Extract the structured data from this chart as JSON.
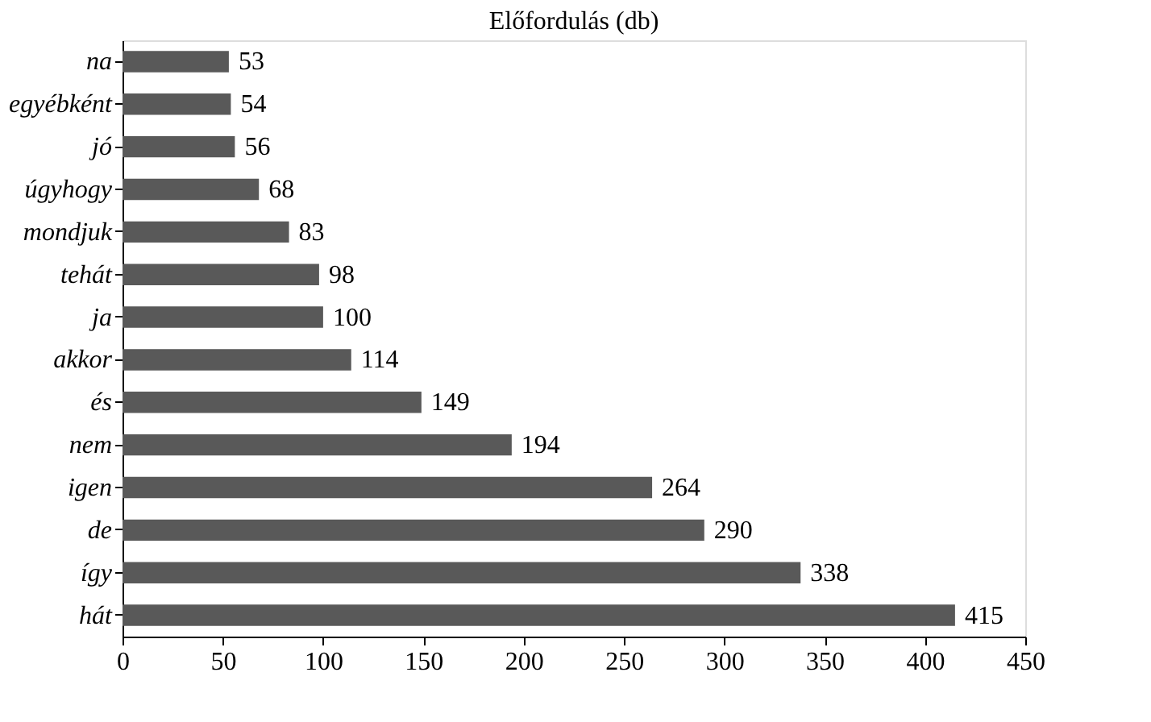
{
  "chart_data": {
    "type": "bar",
    "orientation": "horizontal",
    "title": "Előfordulás (db)",
    "categories": [
      "na",
      "egyébként",
      "jó",
      "úgyhogy",
      "mondjuk",
      "tehát",
      "ja",
      "akkor",
      "és",
      "nem",
      "igen",
      "de",
      "így",
      "hát"
    ],
    "values": [
      53,
      54,
      56,
      68,
      83,
      98,
      100,
      114,
      149,
      194,
      264,
      290,
      338,
      415
    ],
    "color": "#595959",
    "xlim": [
      0,
      450
    ],
    "xticks": [
      0,
      50,
      100,
      150,
      200,
      250,
      300,
      350,
      400,
      450
    ],
    "grid": false,
    "data_labels": true
  }
}
